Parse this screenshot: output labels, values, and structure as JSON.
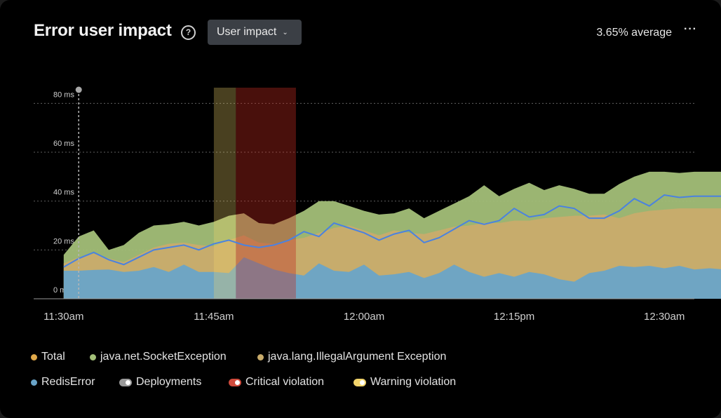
{
  "header": {
    "title": "Error user impact",
    "dropdown_label": "User impact",
    "average": "3.65% average"
  },
  "colors": {
    "total": "#e0a94a",
    "socket": "#a3bf78",
    "illegal": "#c8ab6b",
    "redis": "#6aa4c8",
    "deployments": "#9a9a9a",
    "critical": "#cf4a3c",
    "warning": "#f2d46b",
    "line": "#4a82e0"
  },
  "legend": [
    {
      "key": "total",
      "label": "Total",
      "kind": "dot"
    },
    {
      "key": "socket",
      "label": "java.net.SocketException",
      "kind": "dot"
    },
    {
      "key": "illegal",
      "label": "java.lang.IllegalArgument Exception",
      "kind": "dot"
    },
    {
      "key": "redis",
      "label": "RedisError",
      "kind": "dot"
    },
    {
      "key": "deployments",
      "label": "Deployments",
      "kind": "toggle"
    },
    {
      "key": "critical",
      "label": "Critical violation",
      "kind": "toggle"
    },
    {
      "key": "warning",
      "label": "Warning violation",
      "kind": "toggle"
    }
  ],
  "chart_data": {
    "type": "area",
    "y_ticks": [
      "0 ms",
      "20 ms",
      "40 ms",
      "60 ms",
      "80 ms"
    ],
    "x_ticks": [
      "11:30am",
      "11:45am",
      "12:00am",
      "12:15pm",
      "12:30am"
    ],
    "ylim": [
      0,
      85
    ],
    "x_range_minutes": [
      -3,
      63
    ],
    "grid": true,
    "deployment_minute": 1.5,
    "warning_band": [
      15,
      17.2
    ],
    "critical_band": [
      17.2,
      23.2
    ],
    "x": [
      0,
      1.5,
      3,
      4.5,
      6,
      7.5,
      9,
      10.5,
      12,
      13.5,
      15,
      16.5,
      18,
      19.5,
      21,
      22.5,
      24,
      25.5,
      27,
      28.5,
      30,
      31.5,
      33,
      34.5,
      36,
      37.5,
      39,
      40.5,
      42,
      43.5,
      45,
      46.5,
      48,
      49.5,
      51,
      52.5,
      54,
      55.5,
      57,
      58.5,
      60,
      61.5,
      63,
      64.5,
      66
    ],
    "series": [
      {
        "name": "RedisError",
        "key": "redis",
        "values": [
          11.5,
          11.5,
          11.8,
          12.0,
          11.0,
          11.5,
          13.0,
          11.0,
          14.0,
          11.0,
          11.0,
          10.5,
          17.0,
          14.5,
          12.0,
          10.5,
          9.5,
          14.5,
          11.5,
          11.0,
          14.0,
          9.5,
          10.0,
          11.0,
          8.5,
          10.5,
          14.0,
          11.0,
          9.0,
          10.5,
          9.0,
          11.0,
          10.0,
          8.0,
          7.0,
          10.5,
          11.5,
          13.5,
          13.0,
          13.5,
          12.5,
          13.5,
          12.0,
          12.5,
          12.0
        ]
      },
      {
        "name": "java.lang.IllegalArgument Exception",
        "key": "illegal",
        "values": [
          14.5,
          17.0,
          18.5,
          16.5,
          15.0,
          18.0,
          21.0,
          22.5,
          23.0,
          22.0,
          21.5,
          24.0,
          26.0,
          23.0,
          22.5,
          24.0,
          25.0,
          27.0,
          29.0,
          30.0,
          28.0,
          26.0,
          28.0,
          27.0,
          26.5,
          28.0,
          29.5,
          30.0,
          31.0,
          31.0,
          32.0,
          32.0,
          33.0,
          33.5,
          34.0,
          34.0,
          34.5,
          33.0,
          35.0,
          36.0,
          36.5,
          37.0,
          37.0,
          37.0,
          37.0
        ]
      },
      {
        "name": "java.net.SocketException",
        "key": "socket",
        "values": [
          18.0,
          25.5,
          28.0,
          20.0,
          22.0,
          27.0,
          30.0,
          30.5,
          31.5,
          30.0,
          31.5,
          34.0,
          35.0,
          31.0,
          30.5,
          33.0,
          36.0,
          40.0,
          40.0,
          38.0,
          36.0,
          34.5,
          35.0,
          37.0,
          33.0,
          36.0,
          39.0,
          42.0,
          46.5,
          42.0,
          45.0,
          47.5,
          44.5,
          46.5,
          45.0,
          43.0,
          43.0,
          47.0,
          50.0,
          52.0,
          52.0,
          51.5,
          52.0,
          52.0,
          52.0
        ]
      },
      {
        "name": "Total",
        "key": "total",
        "values": [
          13.0,
          16.5,
          19.0,
          16.0,
          14.0,
          17.0,
          20.0,
          21.0,
          22.0,
          20.0,
          22.5,
          24.0,
          22.0,
          21.0,
          22.0,
          24.0,
          27.5,
          25.5,
          31.0,
          29.0,
          27.0,
          24.0,
          26.5,
          28.0,
          23.0,
          25.0,
          28.5,
          32.0,
          30.5,
          32.0,
          37.0,
          33.5,
          34.5,
          38.0,
          37.0,
          33.0,
          33.0,
          36.0,
          41.0,
          38.0,
          42.5,
          41.5,
          42.0,
          42.0,
          42.0
        ]
      }
    ]
  }
}
